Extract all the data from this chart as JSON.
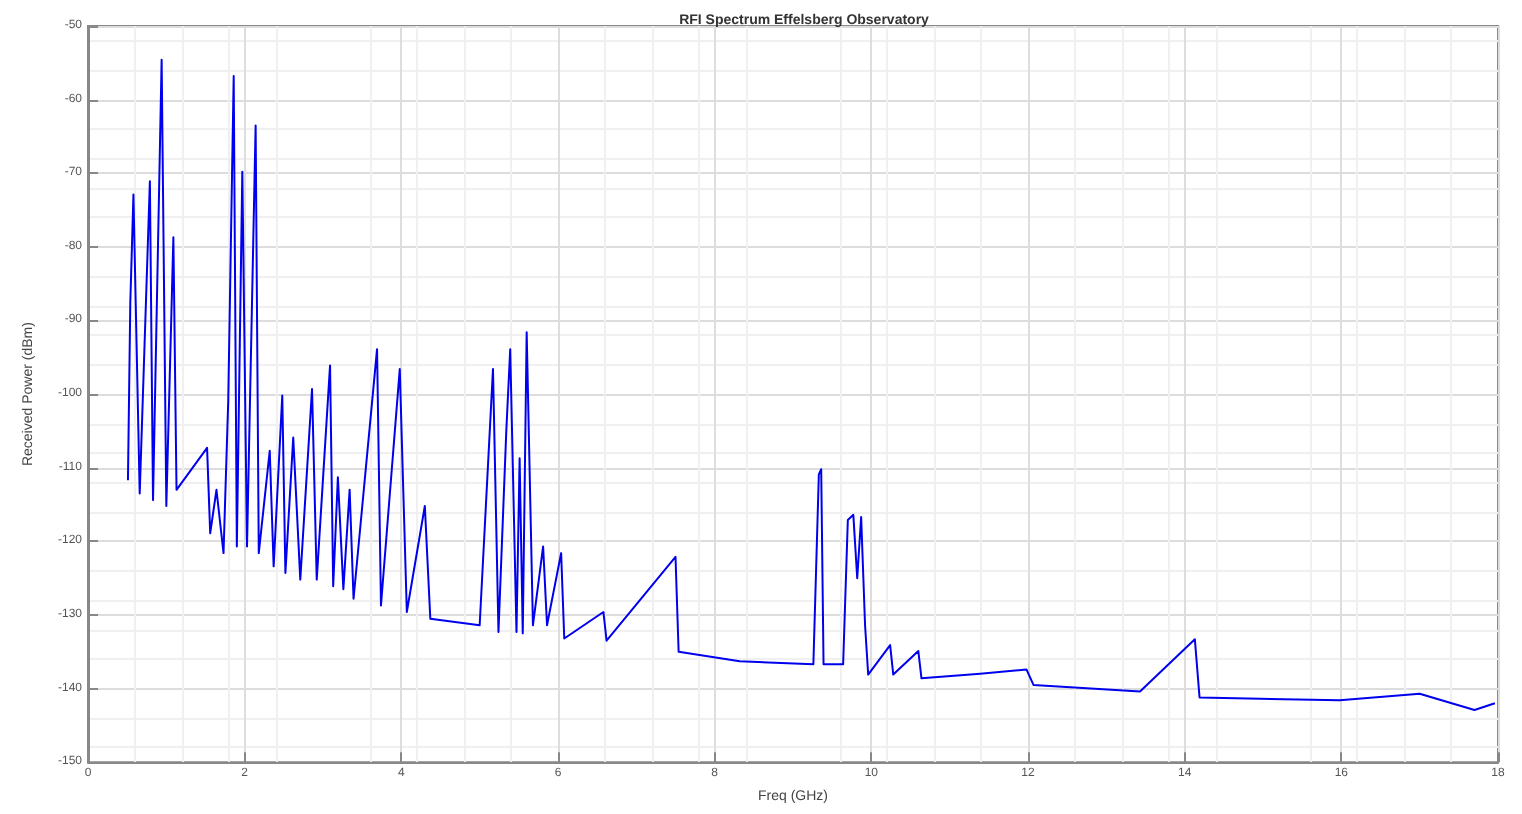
{
  "chart_data": {
    "type": "line",
    "title": "RFI Spectrum Effelsberg Observatory",
    "xlabel": "Freq (GHz)",
    "ylabel": "Received Power (dBm)",
    "x": [
      0.51,
      0.54,
      0.58,
      0.66,
      0.79,
      0.83,
      0.94,
      1.0,
      1.09,
      1.13,
      1.52,
      1.56,
      1.64,
      1.73,
      1.79,
      1.86,
      1.9,
      1.97,
      2.03,
      2.14,
      2.18,
      2.32,
      2.37,
      2.48,
      2.52,
      2.62,
      2.71,
      2.86,
      2.92,
      3.09,
      3.13,
      3.19,
      3.26,
      3.34,
      3.39,
      3.69,
      3.74,
      3.98,
      4.07,
      4.3,
      4.37,
      5.0,
      5.17,
      5.24,
      5.34,
      5.39,
      5.47,
      5.51,
      5.55,
      5.6,
      5.68,
      5.81,
      5.86,
      6.04,
      6.08,
      6.58,
      6.62,
      7.5,
      7.54,
      8.32,
      9.26,
      9.33,
      9.36,
      9.39,
      9.64,
      9.7,
      9.77,
      9.82,
      9.87,
      9.92,
      9.96,
      10.24,
      10.28,
      10.6,
      10.64,
      11.39,
      11.98,
      12.07,
      13.43,
      14.13,
      14.19,
      15.98,
      17.0,
      17.7,
      17.96
    ],
    "series": [
      {
        "color": "#0000ee",
        "values": [
          -111.7,
          -87.6,
          -72.9,
          -113.5,
          -71.1,
          -114.4,
          -54.6,
          -115.2,
          -78.7,
          -113,
          -107.3,
          -118.9,
          -113,
          -121.6,
          -101,
          -56.8,
          -120.7,
          -69.8,
          -120.7,
          -63.5,
          -121.6,
          -107.7,
          -123.4,
          -100.2,
          -124.3,
          -105.9,
          -125.2,
          -99.3,
          -125.2,
          -96.1,
          -126.1,
          -111.3,
          -126.5,
          -113,
          -127.8,
          -93.9,
          -128.7,
          -96.6,
          -129.6,
          -115.2,
          -130.5,
          -131.4,
          -96.6,
          -132.3,
          -105,
          -93.9,
          -132.3,
          -108.7,
          -132.5,
          -91.6,
          -131.4,
          -120.7,
          -131.4,
          -121.6,
          -133.2,
          -129.6,
          -133.5,
          -122.1,
          -135,
          -136.3,
          -136.7,
          -110.9,
          -110.2,
          -136.7,
          -136.7,
          -117.1,
          -116.4,
          -125,
          -116.7,
          -131.4,
          -138.1,
          -134.1,
          -138.1,
          -134.9,
          -138.6,
          -138,
          -137.4,
          -139.5,
          -140.4,
          -133.3,
          -141.2,
          -141.6,
          -140.7,
          -142.9,
          -142
        ]
      }
    ],
    "xlim": [
      0,
      18
    ],
    "xticks": [
      0,
      2,
      4,
      6,
      8,
      10,
      12,
      14,
      16,
      18
    ],
    "ylim": [
      -150,
      -50
    ],
    "yticks": [
      -150,
      -140,
      -130,
      -120,
      -110,
      -100,
      -90,
      -80,
      -70,
      -60,
      -50
    ],
    "grid": true,
    "marker": "none",
    "line_style": "solid"
  }
}
